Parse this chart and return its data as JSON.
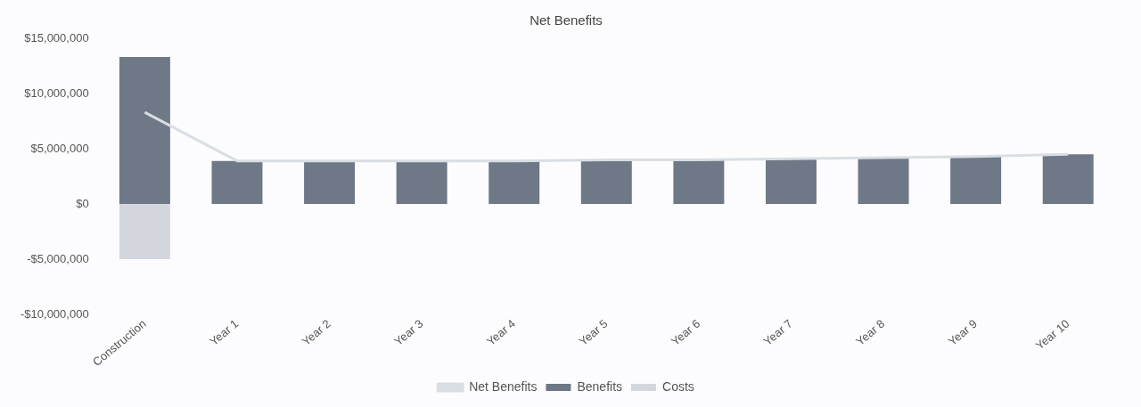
{
  "chart_data": {
    "type": "bar",
    "title": "Net Benefits",
    "stacked": true,
    "legend": "bottom",
    "grid": false,
    "categories": [
      "Construction",
      "Year 1",
      "Year 2",
      "Year 3",
      "Year 4",
      "Year 5",
      "Year 6",
      "Year 7",
      "Year 8",
      "Year 9",
      "Year 10"
    ],
    "ylim": [
      -10000000,
      15000000
    ],
    "yticks": [
      {
        "value": -10000000,
        "label": "-$10,000,000"
      },
      {
        "value": -5000000,
        "label": "-$5,000,000"
      },
      {
        "value": 0,
        "label": "$0"
      },
      {
        "value": 5000000,
        "label": "$5,000,000"
      },
      {
        "value": 10000000,
        "label": "$10,000,000"
      },
      {
        "value": 15000000,
        "label": "$15,000,000"
      }
    ],
    "series": [
      {
        "name": "Benefits",
        "color": "#6f7887",
        "values": [
          13300000,
          3900000,
          3900000,
          3900000,
          3900000,
          4000000,
          4000000,
          4100000,
          4200000,
          4300000,
          4500000
        ]
      },
      {
        "name": "Costs",
        "color": "#d3d7dd",
        "values": [
          -5000000,
          0,
          0,
          0,
          0,
          0,
          0,
          0,
          0,
          0,
          0
        ]
      },
      {
        "name": "Net Benefits",
        "type": "line",
        "color": "#d9dee4",
        "values": [
          8300000,
          3900000,
          3900000,
          3900000,
          3900000,
          4000000,
          4000000,
          4100000,
          4200000,
          4300000,
          4500000
        ]
      }
    ]
  }
}
